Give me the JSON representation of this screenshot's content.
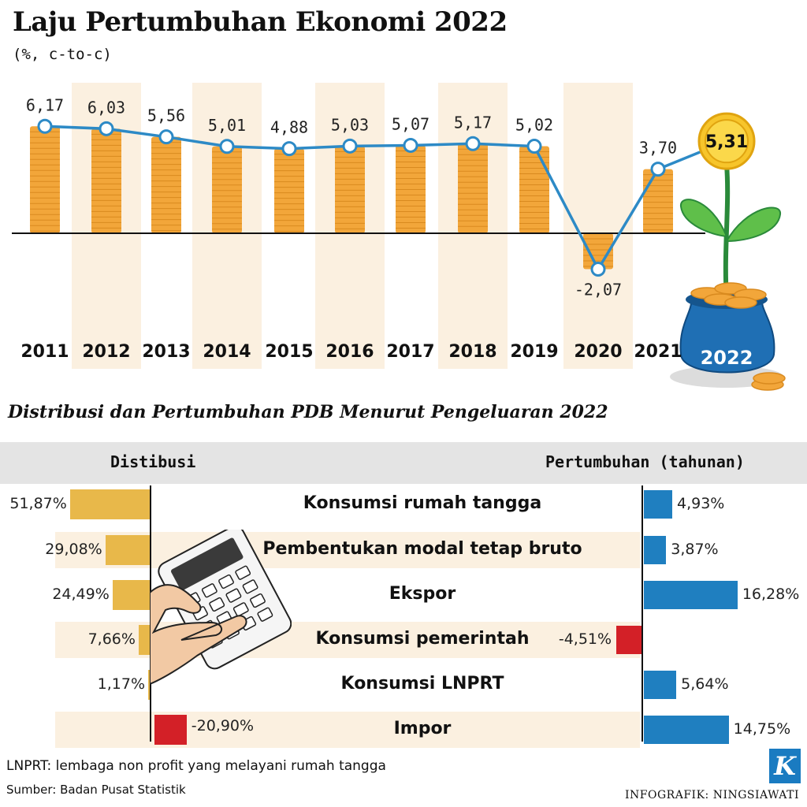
{
  "title": "Laju Pertumbuhan Ekonomi 2022",
  "subtitle": "(%, c-to-c)",
  "chart_data": [
    {
      "type": "line",
      "title": "Laju Pertumbuhan Ekonomi 2022",
      "subtitle": "(%, c-to-c)",
      "categories": [
        "2011",
        "2012",
        "2013",
        "2014",
        "2015",
        "2016",
        "2017",
        "2018",
        "2019",
        "2020",
        "2021",
        "2022"
      ],
      "values": [
        6.17,
        6.03,
        5.56,
        5.01,
        4.88,
        5.03,
        5.07,
        5.17,
        5.02,
        -2.07,
        3.7,
        5.31
      ],
      "labels": [
        "6,17",
        "6,03",
        "5,56",
        "5,01",
        "4,88",
        "5,03",
        "5,07",
        "5,17",
        "5,02",
        "-2,07",
        "3,70",
        "5,31"
      ],
      "highlight": "5,31",
      "highlight_year": "2022"
    },
    {
      "type": "bar",
      "title": "Distribusi dan Pertumbuhan PDB Menurut Pengeluaran 2022",
      "left_header": "Distibusi",
      "right_header": "Pertumbuhan (tahunan)",
      "categories": [
        "Konsumsi rumah tangga",
        "Pembentukan modal tetap bruto",
        "Ekspor",
        "Konsumsi pemerintah",
        "Konsumsi LNPRT",
        "Impor"
      ],
      "series": [
        {
          "name": "Distibusi",
          "values": [
            51.87,
            29.08,
            24.49,
            7.66,
            1.17,
            -20.9
          ],
          "labels": [
            "51,87%",
            "29,08%",
            "24,49%",
            "7,66%",
            "1,17%",
            "-20,90%"
          ]
        },
        {
          "name": "Pertumbuhan (tahunan)",
          "values": [
            4.93,
            3.87,
            16.28,
            -4.51,
            5.64,
            14.75
          ],
          "labels": [
            "4,93%",
            "3,87%",
            "16,28%",
            "-4,51%",
            "5,64%",
            "14,75%"
          ]
        }
      ]
    }
  ],
  "colors": {
    "gold": "#f2a63a",
    "gold_dark": "#d98a1f",
    "line": "#2d8ac6",
    "positive": "#1f7fc0",
    "negative": "#d32027",
    "dist": "#e8b84a",
    "band": "#fbf0e0"
  },
  "footnote": "LNPRT: lembaga non profit yang melayani rumah tangga",
  "source": "Sumber: Badan Pusat Statistik",
  "credit": "INFOGRAFIK: NINGSIAWATI",
  "logo": "K"
}
